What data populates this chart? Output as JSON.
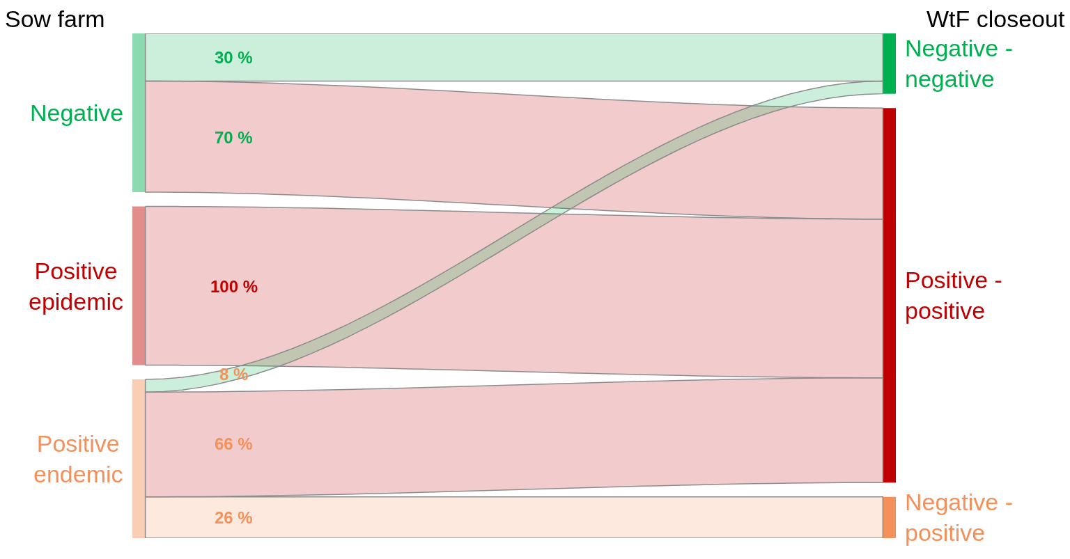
{
  "chart_data": {
    "type": "other",
    "annotations": [
      "Sow farm",
      "WtF closeout"
    ],
    "categories": [
      "Negative",
      "Positive\nepidemic",
      "Positive\nendemic"
    ],
    "colors": [
      "#00b050",
      "#c00000",
      "#f4915a"
    ],
    "series": [
      {
        "name": "Negative -\nnegative",
        "color": "#00b050",
        "values": [
          30,
          null,
          8
        ],
        "value_labels": [
          "30 %",
          null,
          "8 %"
        ]
      },
      {
        "name": "Positive -\npositive",
        "color": "#c00000",
        "values": [
          70,
          100,
          66
        ],
        "value_labels": [
          "70 %",
          "100 %",
          "66 %"
        ]
      },
      {
        "name": "Negative -\npositive",
        "color": "#f4915a",
        "values": [
          null,
          null,
          26
        ],
        "value_labels": [
          null,
          null,
          "26 %"
        ]
      }
    ]
  }
}
